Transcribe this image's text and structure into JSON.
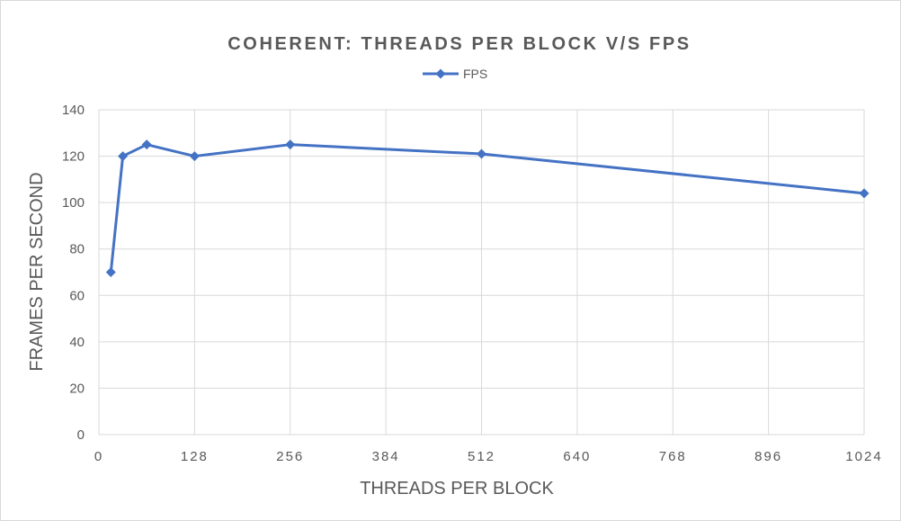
{
  "chart_data": {
    "type": "scatter",
    "title": "COHERENT: THREADS PER BLOCK V/S FPS",
    "xlabel": "THREADS PER BLOCK",
    "ylabel": "FRAMES PER SECOND",
    "xlim": [
      0,
      1024
    ],
    "ylim": [
      0,
      140
    ],
    "xticks": [
      0,
      128,
      256,
      384,
      512,
      640,
      768,
      896,
      1024
    ],
    "yticks": [
      0,
      20,
      40,
      60,
      80,
      100,
      120,
      140
    ],
    "grid": true,
    "legend": "top-center",
    "series": [
      {
        "name": "FPS",
        "color": "#4472c4",
        "marker": "diamond",
        "x": [
          16,
          32,
          64,
          128,
          256,
          512,
          1024
        ],
        "y": [
          70,
          120,
          125,
          120,
          125,
          121,
          104
        ]
      }
    ]
  }
}
